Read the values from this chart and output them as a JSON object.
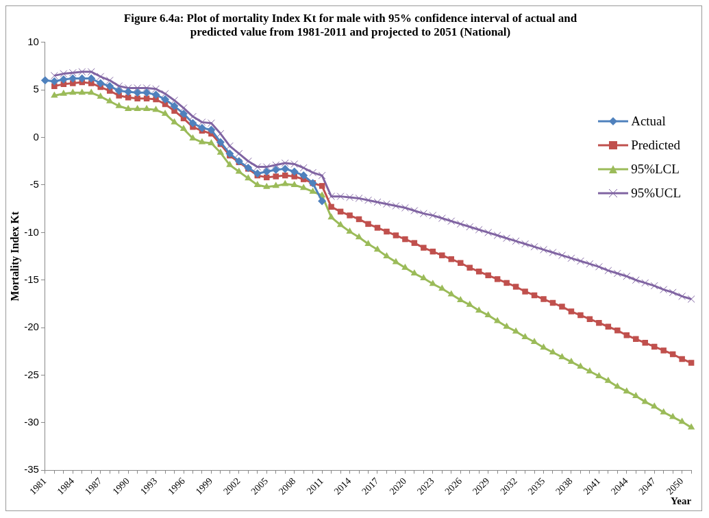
{
  "chart_data": {
    "type": "line",
    "title": "Figure 6.4a: Plot of mortality Index Kt for male with 95% confidence interval of actual and predicted value from 1981-2011 and projected to 2051 (National)",
    "xlabel": "Year",
    "ylabel": "Mortality Index Kt",
    "categories": [
      "1981",
      null,
      null,
      "1984",
      null,
      null,
      "1987",
      null,
      null,
      "1990",
      null,
      null,
      "1993",
      null,
      null,
      "1996",
      null,
      null,
      "1999",
      null,
      null,
      "2002",
      null,
      null,
      "2005",
      null,
      null,
      "2008",
      null,
      null,
      "2011",
      null,
      null,
      "2014",
      null,
      null,
      "2017",
      null,
      null,
      "2020",
      null,
      null,
      "2023",
      null,
      null,
      "2026",
      null,
      null,
      "2029",
      null,
      null,
      "2032",
      null,
      null,
      "2035",
      null,
      null,
      "2038",
      null,
      null,
      "2041",
      null,
      null,
      "2044",
      null,
      null,
      "2047",
      null,
      null,
      "2050",
      null
    ],
    "ylim": [
      -35,
      10
    ],
    "yticks": [
      -35,
      -30,
      -25,
      -20,
      -15,
      -10,
      -5,
      0,
      5,
      10
    ],
    "grid": false,
    "legend": "top right",
    "series": [
      {
        "name": "Actual",
        "color": "#4f81bd",
        "marker": "diamond",
        "values": [
          6.0,
          5.9,
          6.1,
          6.2,
          6.2,
          6.2,
          5.7,
          5.4,
          4.9,
          4.8,
          4.7,
          4.7,
          4.5,
          4.0,
          3.3,
          2.5,
          1.5,
          1.0,
          0.8,
          -0.5,
          -1.7,
          -2.5,
          -3.2,
          -3.8,
          -3.6,
          -3.4,
          -3.3,
          -3.6,
          -4.0,
          -4.8,
          -6.7,
          null,
          null,
          null,
          null,
          null,
          null,
          null,
          null,
          null,
          null,
          null,
          null,
          null,
          null,
          null,
          null,
          null,
          null,
          null,
          null,
          null,
          null,
          null,
          null,
          null,
          null,
          null,
          null,
          null,
          null,
          null,
          null,
          null,
          null,
          null,
          null,
          null,
          null,
          null,
          null
        ]
      },
      {
        "name": "Predicted",
        "color": "#c0504d",
        "marker": "square",
        "values": [
          null,
          5.4,
          5.6,
          5.7,
          5.8,
          5.7,
          5.3,
          4.9,
          4.4,
          4.2,
          4.1,
          4.1,
          4.0,
          3.5,
          2.8,
          2.0,
          1.1,
          0.7,
          0.4,
          -0.7,
          -1.9,
          -2.6,
          -3.3,
          -4.0,
          -4.2,
          -4.1,
          -4.0,
          -4.1,
          -4.4,
          -4.8,
          -5.1,
          -7.3,
          -7.8,
          -8.2,
          -8.6,
          -9.1,
          -9.5,
          -9.9,
          -10.3,
          -10.7,
          -11.1,
          -11.6,
          -12.0,
          -12.4,
          -12.8,
          -13.2,
          -13.7,
          -14.1,
          -14.5,
          -14.9,
          -15.3,
          -15.7,
          -16.2,
          -16.6,
          -17.0,
          -17.4,
          -17.8,
          -18.3,
          -18.7,
          -19.1,
          -19.5,
          -19.9,
          -20.3,
          -20.8,
          -21.2,
          -21.6,
          -22.0,
          -22.4,
          -22.8,
          -23.3,
          -23.7
        ]
      },
      {
        "name": "95%LCL",
        "color": "#9bbb59",
        "marker": "triangle",
        "values": [
          null,
          4.4,
          4.6,
          4.7,
          4.7,
          4.7,
          4.3,
          3.8,
          3.3,
          3.0,
          3.0,
          3.0,
          2.9,
          2.5,
          1.6,
          0.9,
          -0.1,
          -0.5,
          -0.6,
          -1.6,
          -2.9,
          -3.6,
          -4.3,
          -5.0,
          -5.2,
          -5.1,
          -4.9,
          -5.0,
          -5.3,
          -5.7,
          -6.1,
          -8.4,
          -9.2,
          -9.9,
          -10.5,
          -11.2,
          -11.8,
          -12.5,
          -13.1,
          -13.7,
          -14.3,
          -14.8,
          -15.4,
          -15.9,
          -16.5,
          -17.1,
          -17.6,
          -18.2,
          -18.7,
          -19.3,
          -19.9,
          -20.4,
          -21.0,
          -21.5,
          -22.1,
          -22.6,
          -23.1,
          -23.6,
          -24.1,
          -24.6,
          -25.1,
          -25.6,
          -26.2,
          -26.7,
          -27.2,
          -27.8,
          -28.3,
          -28.9,
          -29.4,
          -29.9,
          -30.5
        ]
      },
      {
        "name": "95%UCL",
        "color": "#8064a2",
        "marker": "cross",
        "values": [
          null,
          6.5,
          6.7,
          6.8,
          6.9,
          6.9,
          6.4,
          6.0,
          5.4,
          5.2,
          5.2,
          5.2,
          5.1,
          4.6,
          3.9,
          3.1,
          2.2,
          1.6,
          1.5,
          0.4,
          -0.9,
          -1.7,
          -2.5,
          -3.1,
          -3.1,
          -2.9,
          -2.7,
          -2.8,
          -3.2,
          -3.7,
          -4.0,
          -6.2,
          -6.2,
          -6.3,
          -6.4,
          -6.6,
          -6.8,
          -7.0,
          -7.2,
          -7.4,
          -7.7,
          -8.0,
          -8.2,
          -8.5,
          -8.8,
          -9.1,
          -9.4,
          -9.7,
          -10.0,
          -10.3,
          -10.6,
          -10.9,
          -11.2,
          -11.5,
          -11.8,
          -12.1,
          -12.4,
          -12.7,
          -13.0,
          -13.3,
          -13.6,
          -14.0,
          -14.3,
          -14.6,
          -15.0,
          -15.3,
          -15.6,
          -16.0,
          -16.3,
          -16.7,
          -17.0
        ]
      }
    ]
  }
}
